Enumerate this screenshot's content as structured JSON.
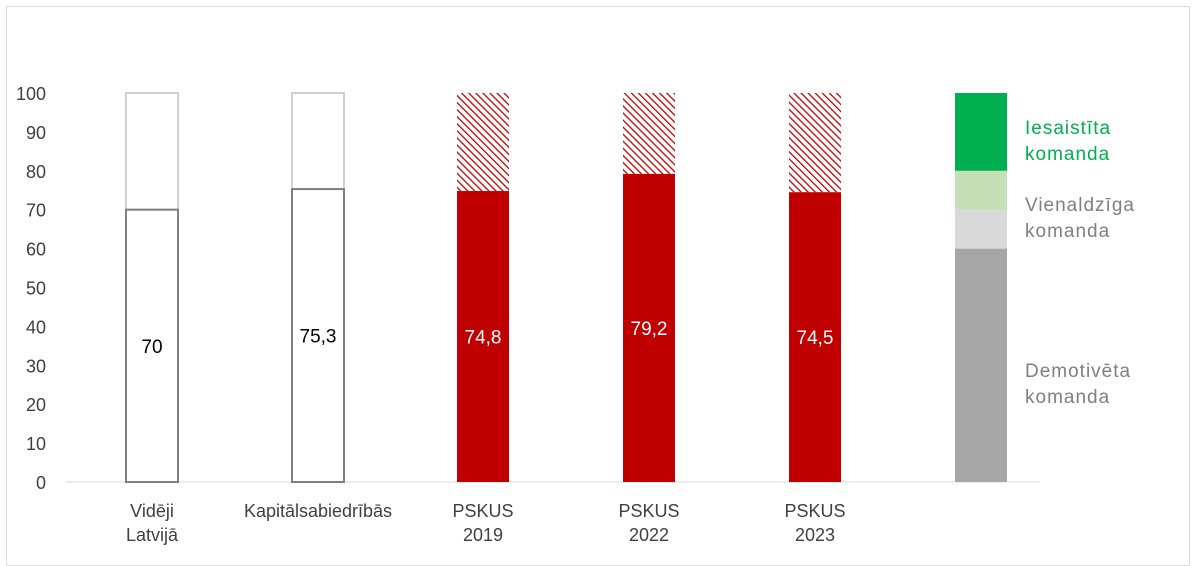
{
  "chart_data": {
    "type": "bar",
    "categories": [
      [
        "Vidēji",
        "Latvijā"
      ],
      [
        "Kapitālsabiedrībās"
      ],
      [
        "PSKUS",
        "2019"
      ],
      [
        "PSKUS",
        "2022"
      ],
      [
        "PSKUS",
        "2023"
      ]
    ],
    "values": [
      70,
      75.3,
      74.8,
      79.2,
      74.5
    ],
    "data_labels": [
      "70",
      "75,3",
      "74,8",
      "79,2",
      "74,5"
    ],
    "bar_styles": [
      "outline",
      "outline",
      "red",
      "red",
      "red"
    ],
    "ylim": [
      0,
      100
    ],
    "yticks": [
      0,
      10,
      20,
      30,
      40,
      50,
      60,
      70,
      80,
      90,
      100
    ],
    "grid": false,
    "scale_bar": {
      "segments": [
        {
          "from": 0,
          "to": 60,
          "color": "#a6a6a6",
          "label": [
            "Demotivēta",
            "komanda"
          ],
          "label_color": "#7f7f7f"
        },
        {
          "from": 60,
          "to": 70,
          "color": "#d9d9d9",
          "label": [
            "Vienaldzīga",
            "komanda"
          ],
          "label_color": "#7f7f7f"
        },
        {
          "from": 70,
          "to": 80,
          "color": "#c5e0b4",
          "label": null,
          "label_color": null
        },
        {
          "from": 80,
          "to": 100,
          "color": "#00b050",
          "label": [
            "Iesaistīta",
            "komanda"
          ],
          "label_color": "#00b050"
        }
      ]
    },
    "colors": {
      "red": "#c00000",
      "outline_stroke": "#7f7f7f",
      "outline_top_stroke": "#d0d0d0"
    }
  }
}
